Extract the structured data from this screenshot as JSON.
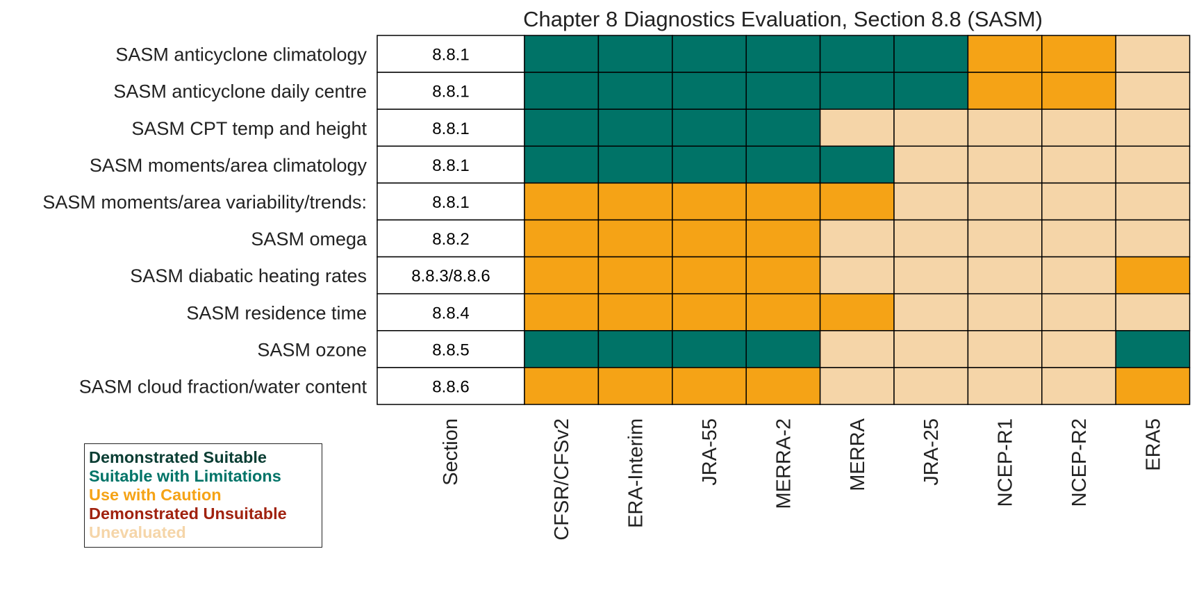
{
  "chart_data": {
    "type": "heatmap",
    "title": "Chapter 8 Diagnostics Evaluation, Section 8.8 (SASM)",
    "section_header": "Section",
    "rows": [
      "SASM anticyclone climatology",
      "SASM anticyclone daily centre",
      "SASM CPT temp and height",
      "SASM moments/area climatology",
      "SASM moments/area variability/trends:",
      "SASM omega",
      "SASM diabatic heating rates",
      "SASM residence time",
      "SASM ozone",
      "SASM cloud fraction/water content"
    ],
    "sections": [
      "8.8.1",
      "8.8.1",
      "8.8.1",
      "8.8.1",
      "8.8.1",
      "8.8.2",
      "8.8.3/8.8.6",
      "8.8.4",
      "8.8.5",
      "8.8.6"
    ],
    "columns": [
      "CFSR/CFSv2",
      "ERA-Interim",
      "JRA-55",
      "MERRA-2",
      "MERRA",
      "JRA-25",
      "NCEP-R1",
      "NCEP-R2",
      "ERA5"
    ],
    "categories": [
      {
        "label": "Demonstrated Suitable",
        "color": "#0a3d33"
      },
      {
        "label": "Suitable with Limitations",
        "color": "#007367"
      },
      {
        "label": "Use with Caution",
        "color": "#f5a316"
      },
      {
        "label": "Demonstrated Unsuitable",
        "color": "#a0220f"
      },
      {
        "label": "Unevaluated",
        "color": "#f5d5a8"
      }
    ],
    "values": [
      [
        1,
        1,
        1,
        1,
        1,
        1,
        2,
        2,
        4
      ],
      [
        1,
        1,
        1,
        1,
        1,
        1,
        2,
        2,
        4
      ],
      [
        1,
        1,
        1,
        1,
        4,
        4,
        4,
        4,
        4
      ],
      [
        1,
        1,
        1,
        1,
        1,
        4,
        4,
        4,
        4
      ],
      [
        2,
        2,
        2,
        2,
        2,
        4,
        4,
        4,
        4
      ],
      [
        2,
        2,
        2,
        2,
        4,
        4,
        4,
        4,
        4
      ],
      [
        2,
        2,
        2,
        2,
        4,
        4,
        4,
        4,
        2
      ],
      [
        2,
        2,
        2,
        2,
        2,
        4,
        4,
        4,
        4
      ],
      [
        1,
        1,
        1,
        1,
        4,
        4,
        4,
        4,
        1
      ],
      [
        2,
        2,
        2,
        2,
        4,
        4,
        4,
        4,
        2
      ]
    ],
    "legend_position": "bottom-left"
  }
}
